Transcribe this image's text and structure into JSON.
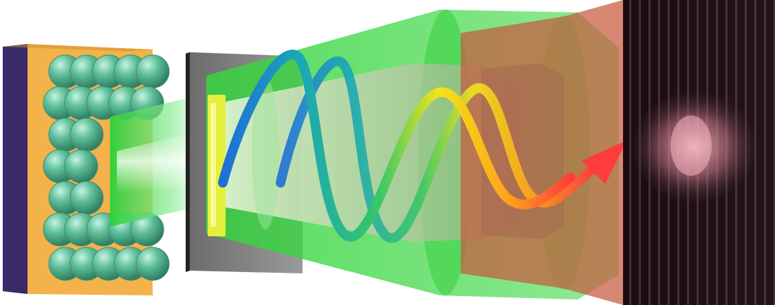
{
  "figure": {
    "kind": "schematic illustration",
    "text_labels": [],
    "colors": {
      "substrate_back": "#3a2a6a",
      "substrate_front": "#f4b24a",
      "spheres": "#5fbf9a",
      "emission_beam": "#39d94a",
      "detector_plate": "#8a8a8a",
      "lens": "#e6f03c",
      "cone_green": "#3fdc4a",
      "cone_red": "#c85a40",
      "wave_start": "#1f6fd6",
      "wave_mid": "#f2e51b",
      "wave_end": "#ff3c3c",
      "screen": "#2a1a20",
      "fringe": "#f0a6b4"
    },
    "icons": [
      "wave-arrow-icon"
    ]
  }
}
